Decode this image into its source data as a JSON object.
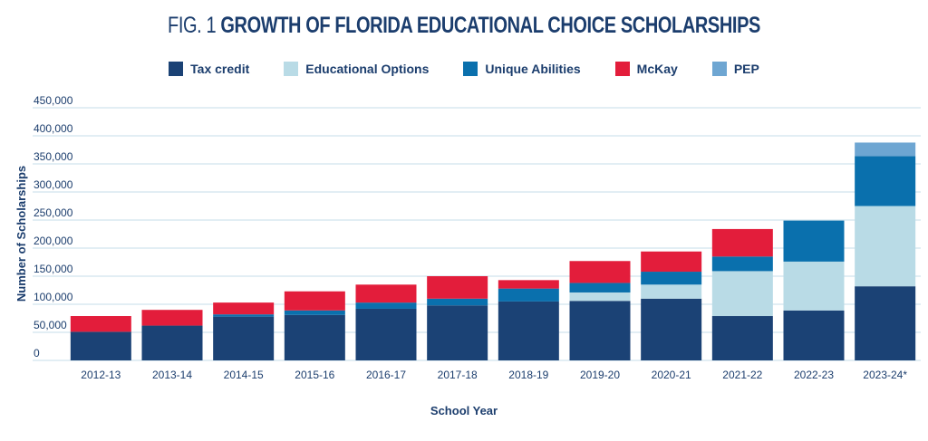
{
  "title": {
    "fig": "FIG. 1",
    "main": "GROWTH OF FLORIDA EDUCATIONAL CHOICE SCHOLARSHIPS"
  },
  "colors": {
    "Tax credit": "#1b4275",
    "Educational Options": "#b9dbe6",
    "Unique Abilities": "#0a70ad",
    "McKay": "#e31d3b",
    "PEP": "#6ea6d2",
    "grid": "#c5dde8",
    "text": "#1b3d6d"
  },
  "chart_data": {
    "type": "bar",
    "stacked": true,
    "title": "GROWTH OF FLORIDA EDUCATIONAL CHOICE SCHOLARSHIPS",
    "xlabel": "School Year",
    "ylabel": "Number of Scholarships",
    "ylim": [
      0,
      450000
    ],
    "yticks": [
      "450,000",
      "400,000",
      "350,000",
      "300,000",
      "250,000",
      "200,000",
      "150,000",
      "100,000",
      "50,000",
      "0"
    ],
    "grid": true,
    "legend_position": "top",
    "categories": [
      "2012-13",
      "2013-14",
      "2014-15",
      "2015-16",
      "2016-17",
      "2017-18",
      "2018-19",
      "2019-20",
      "2020-21",
      "2021-22",
      "2022-23",
      "2023-24*"
    ],
    "series": [
      {
        "name": "Tax credit",
        "values": [
          51000,
          62000,
          78000,
          81000,
          92000,
          98000,
          105000,
          106000,
          110000,
          79000,
          89000,
          132000
        ]
      },
      {
        "name": "Educational Options",
        "values": [
          0,
          0,
          0,
          0,
          0,
          0,
          0,
          15000,
          25000,
          80000,
          87000,
          143000
        ]
      },
      {
        "name": "Unique Abilities",
        "values": [
          0,
          0,
          4000,
          8000,
          11000,
          12000,
          23000,
          17000,
          23000,
          26000,
          73000,
          89000
        ]
      },
      {
        "name": "McKay",
        "values": [
          28000,
          28000,
          21000,
          34000,
          32000,
          40000,
          15000,
          39000,
          36000,
          49000,
          0,
          0
        ]
      },
      {
        "name": "PEP",
        "values": [
          0,
          0,
          0,
          0,
          0,
          0,
          0,
          0,
          0,
          0,
          0,
          24000
        ]
      }
    ]
  }
}
